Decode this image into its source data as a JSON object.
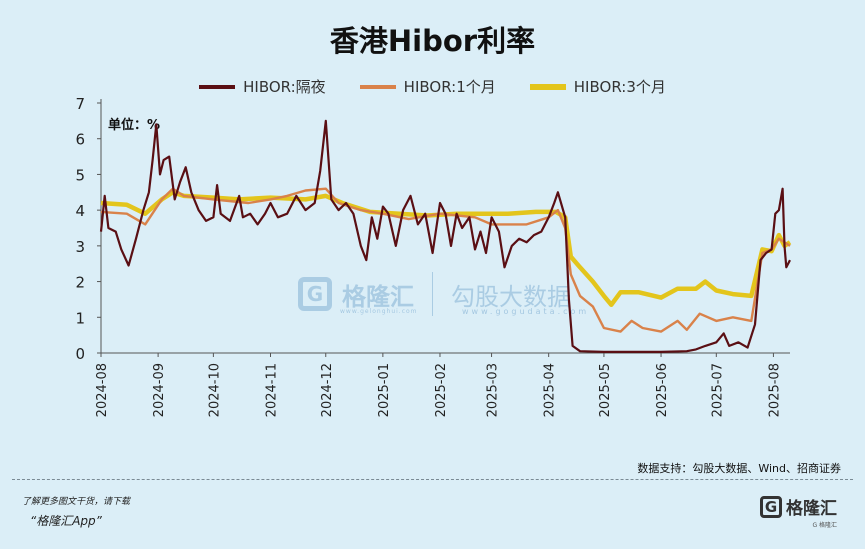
{
  "header": {
    "title": "香港Hibor利率"
  },
  "unit_label": "单位：%",
  "source": "数据支持：勾股大数据、Wind、招商证券",
  "footer": {
    "promo": "了解更多图文干货，请下载",
    "app": "“格隆汇App”"
  },
  "brand": {
    "logo_letter": "G",
    "name": "格隆汇",
    "sub": "G 格隆汇"
  },
  "watermark": {
    "left_name": "格隆汇",
    "left_url": "www.gelonghui.com",
    "right_name": "勾股大数据",
    "right_url": "www.gogudata.com"
  },
  "colors": {
    "background": "#dbeef7",
    "overnight": "#5a0f14",
    "one_month": "#d9824a",
    "three_month": "#e3c51c"
  },
  "chart_data": {
    "type": "line",
    "title": "香港Hibor利率",
    "ylabel": "单位：%",
    "ylim": [
      0,
      7
    ],
    "yticks": [
      0,
      1,
      2,
      3,
      4,
      5,
      6,
      7
    ],
    "xticks": [
      "2024-08",
      "2024-09",
      "2024-10",
      "2024-11",
      "2024-12",
      "2025-01",
      "2025-02",
      "2025-03",
      "2025-04",
      "2025-05",
      "2025-06",
      "2025-07",
      "2025-08"
    ],
    "grid": false,
    "legend_position": "top",
    "series": [
      {
        "name": "HIBOR:隔夜",
        "points": [
          [
            "2024-08-01",
            3.4
          ],
          [
            "2024-08-03",
            4.4
          ],
          [
            "2024-08-05",
            3.5
          ],
          [
            "2024-08-09",
            3.4
          ],
          [
            "2024-08-12",
            2.9
          ],
          [
            "2024-08-16",
            2.45
          ],
          [
            "2024-08-20",
            3.2
          ],
          [
            "2024-08-24",
            4.0
          ],
          [
            "2024-08-27",
            4.5
          ],
          [
            "2024-08-29",
            5.4
          ],
          [
            "2024-08-31",
            6.4
          ],
          [
            "2024-09-02",
            5.0
          ],
          [
            "2024-09-04",
            5.4
          ],
          [
            "2024-09-07",
            5.5
          ],
          [
            "2024-09-10",
            4.3
          ],
          [
            "2024-09-13",
            4.8
          ],
          [
            "2024-09-16",
            5.2
          ],
          [
            "2024-09-19",
            4.5
          ],
          [
            "2024-09-23",
            4.0
          ],
          [
            "2024-09-27",
            3.7
          ],
          [
            "2024-10-01",
            3.8
          ],
          [
            "2024-10-03",
            4.7
          ],
          [
            "2024-10-05",
            3.9
          ],
          [
            "2024-10-10",
            3.7
          ],
          [
            "2024-10-15",
            4.4
          ],
          [
            "2024-10-17",
            3.8
          ],
          [
            "2024-10-21",
            3.9
          ],
          [
            "2024-10-25",
            3.6
          ],
          [
            "2024-10-29",
            3.9
          ],
          [
            "2024-11-01",
            4.2
          ],
          [
            "2024-11-05",
            3.8
          ],
          [
            "2024-11-10",
            3.9
          ],
          [
            "2024-11-15",
            4.4
          ],
          [
            "2024-11-20",
            4.0
          ],
          [
            "2024-11-25",
            4.2
          ],
          [
            "2024-11-28",
            5.1
          ],
          [
            "2024-12-01",
            6.5
          ],
          [
            "2024-12-04",
            4.3
          ],
          [
            "2024-12-08",
            4.0
          ],
          [
            "2024-12-12",
            4.2
          ],
          [
            "2024-12-16",
            3.9
          ],
          [
            "2024-12-20",
            3.0
          ],
          [
            "2024-12-23",
            2.6
          ],
          [
            "2024-12-26",
            3.8
          ],
          [
            "2024-12-29",
            3.2
          ],
          [
            "2025-01-01",
            4.1
          ],
          [
            "2025-01-04",
            3.9
          ],
          [
            "2025-01-08",
            3.0
          ],
          [
            "2025-01-12",
            4.0
          ],
          [
            "2025-01-16",
            4.4
          ],
          [
            "2025-01-20",
            3.6
          ],
          [
            "2025-01-24",
            3.9
          ],
          [
            "2025-01-28",
            2.8
          ],
          [
            "2025-02-01",
            4.2
          ],
          [
            "2025-02-04",
            3.9
          ],
          [
            "2025-02-07",
            3.0
          ],
          [
            "2025-02-10",
            3.9
          ],
          [
            "2025-02-13",
            3.5
          ],
          [
            "2025-02-17",
            3.8
          ],
          [
            "2025-02-20",
            2.9
          ],
          [
            "2025-02-23",
            3.4
          ],
          [
            "2025-02-26",
            2.8
          ],
          [
            "2025-03-01",
            3.8
          ],
          [
            "2025-03-05",
            3.4
          ],
          [
            "2025-03-08",
            2.4
          ],
          [
            "2025-03-12",
            3.0
          ],
          [
            "2025-03-16",
            3.2
          ],
          [
            "2025-03-20",
            3.1
          ],
          [
            "2025-03-24",
            3.3
          ],
          [
            "2025-03-28",
            3.4
          ],
          [
            "2025-04-01",
            3.8
          ],
          [
            "2025-04-04",
            4.2
          ],
          [
            "2025-04-06",
            4.5
          ],
          [
            "2025-04-10",
            3.8
          ],
          [
            "2025-04-12",
            1.5
          ],
          [
            "2025-04-14",
            0.2
          ],
          [
            "2025-04-18",
            0.05
          ],
          [
            "2025-05-01",
            0.03
          ],
          [
            "2025-05-15",
            0.03
          ],
          [
            "2025-06-01",
            0.03
          ],
          [
            "2025-06-15",
            0.05
          ],
          [
            "2025-06-20",
            0.1
          ],
          [
            "2025-06-25",
            0.2
          ],
          [
            "2025-07-01",
            0.3
          ],
          [
            "2025-07-05",
            0.55
          ],
          [
            "2025-07-08",
            0.2
          ],
          [
            "2025-07-13",
            0.3
          ],
          [
            "2025-07-18",
            0.15
          ],
          [
            "2025-07-22",
            0.8
          ],
          [
            "2025-07-25",
            2.6
          ],
          [
            "2025-07-28",
            2.8
          ],
          [
            "2025-07-31",
            2.9
          ],
          [
            "2025-08-02",
            3.9
          ],
          [
            "2025-08-04",
            4.0
          ],
          [
            "2025-08-06",
            4.6
          ],
          [
            "2025-08-07",
            3.0
          ],
          [
            "2025-08-08",
            2.4
          ],
          [
            "2025-08-10",
            2.6
          ]
        ]
      },
      {
        "name": "HIBOR:1个月",
        "points": [
          [
            "2024-08-01",
            3.95
          ],
          [
            "2024-08-15",
            3.9
          ],
          [
            "2024-08-25",
            3.6
          ],
          [
            "2024-09-03",
            4.3
          ],
          [
            "2024-09-09",
            4.6
          ],
          [
            "2024-09-15",
            4.4
          ],
          [
            "2024-10-01",
            4.3
          ],
          [
            "2024-10-20",
            4.2
          ],
          [
            "2024-11-01",
            4.3
          ],
          [
            "2024-11-10",
            4.4
          ],
          [
            "2024-11-20",
            4.55
          ],
          [
            "2024-12-01",
            4.6
          ],
          [
            "2024-12-08",
            4.2
          ],
          [
            "2024-12-20",
            4.0
          ],
          [
            "2025-01-01",
            3.9
          ],
          [
            "2025-01-15",
            3.75
          ],
          [
            "2025-02-01",
            3.9
          ],
          [
            "2025-02-20",
            3.8
          ],
          [
            "2025-03-01",
            3.6
          ],
          [
            "2025-03-20",
            3.6
          ],
          [
            "2025-04-01",
            3.8
          ],
          [
            "2025-04-06",
            4.0
          ],
          [
            "2025-04-10",
            3.5
          ],
          [
            "2025-04-13",
            2.2
          ],
          [
            "2025-04-18",
            1.6
          ],
          [
            "2025-04-25",
            1.3
          ],
          [
            "2025-05-01",
            0.7
          ],
          [
            "2025-05-10",
            0.6
          ],
          [
            "2025-05-16",
            0.9
          ],
          [
            "2025-05-22",
            0.7
          ],
          [
            "2025-06-01",
            0.6
          ],
          [
            "2025-06-10",
            0.9
          ],
          [
            "2025-06-15",
            0.65
          ],
          [
            "2025-06-22",
            1.1
          ],
          [
            "2025-07-01",
            0.9
          ],
          [
            "2025-07-10",
            1.0
          ],
          [
            "2025-07-20",
            0.9
          ],
          [
            "2025-07-26",
            2.8
          ],
          [
            "2025-07-31",
            2.9
          ],
          [
            "2025-08-04",
            3.2
          ],
          [
            "2025-08-07",
            3.1
          ],
          [
            "2025-08-10",
            3.0
          ]
        ]
      },
      {
        "name": "HIBOR:3个月",
        "points": [
          [
            "2024-08-01",
            4.2
          ],
          [
            "2024-08-15",
            4.15
          ],
          [
            "2024-08-25",
            3.9
          ],
          [
            "2024-09-03",
            4.3
          ],
          [
            "2024-09-09",
            4.5
          ],
          [
            "2024-09-15",
            4.4
          ],
          [
            "2024-10-01",
            4.35
          ],
          [
            "2024-10-15",
            4.3
          ],
          [
            "2024-11-01",
            4.35
          ],
          [
            "2024-11-20",
            4.3
          ],
          [
            "2024-12-01",
            4.4
          ],
          [
            "2024-12-10",
            4.2
          ],
          [
            "2024-12-25",
            3.95
          ],
          [
            "2025-01-10",
            3.9
          ],
          [
            "2025-01-25",
            3.85
          ],
          [
            "2025-02-10",
            3.9
          ],
          [
            "2025-02-25",
            3.9
          ],
          [
            "2025-03-10",
            3.9
          ],
          [
            "2025-03-25",
            3.95
          ],
          [
            "2025-04-05",
            3.95
          ],
          [
            "2025-04-10",
            3.8
          ],
          [
            "2025-04-13",
            2.7
          ],
          [
            "2025-04-18",
            2.4
          ],
          [
            "2025-04-25",
            2.0
          ],
          [
            "2025-05-01",
            1.6
          ],
          [
            "2025-05-05",
            1.35
          ],
          [
            "2025-05-10",
            1.7
          ],
          [
            "2025-05-20",
            1.7
          ],
          [
            "2025-06-01",
            1.55
          ],
          [
            "2025-06-10",
            1.8
          ],
          [
            "2025-06-20",
            1.8
          ],
          [
            "2025-06-25",
            2.0
          ],
          [
            "2025-07-01",
            1.75
          ],
          [
            "2025-07-10",
            1.65
          ],
          [
            "2025-07-20",
            1.6
          ],
          [
            "2025-07-26",
            2.9
          ],
          [
            "2025-07-31",
            2.85
          ],
          [
            "2025-08-04",
            3.3
          ],
          [
            "2025-08-07",
            3.0
          ],
          [
            "2025-08-10",
            3.1
          ]
        ]
      }
    ]
  }
}
